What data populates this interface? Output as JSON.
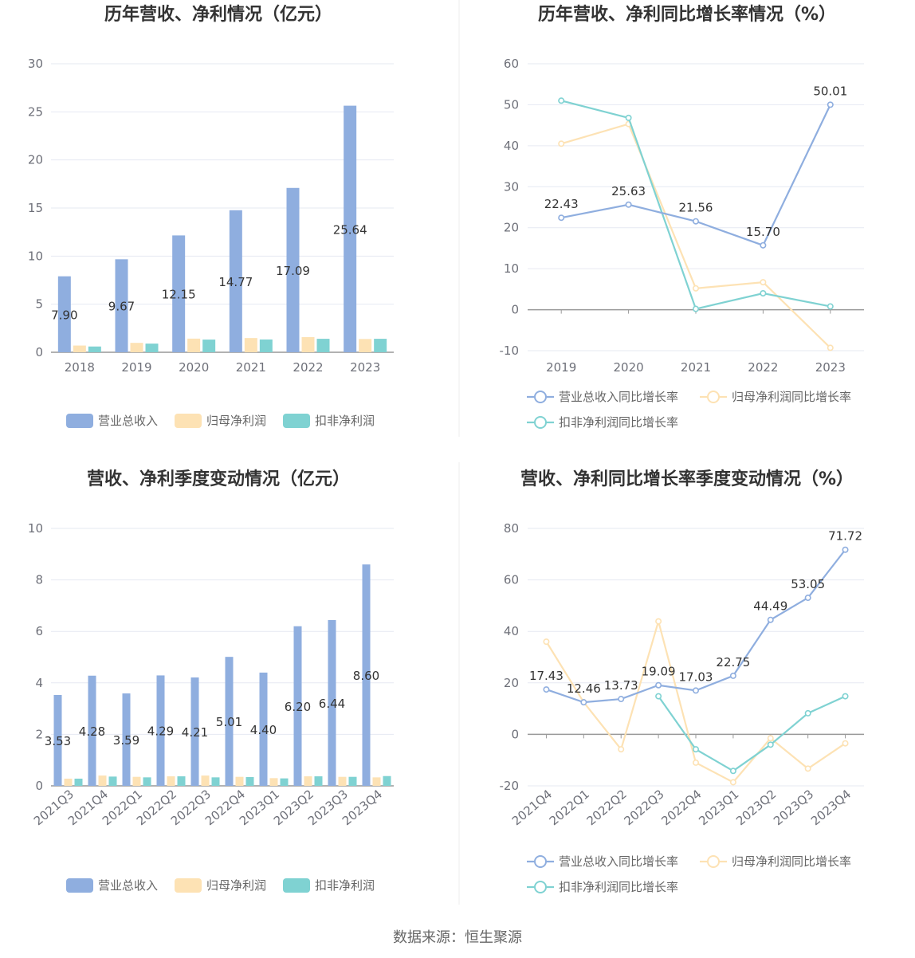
{
  "source": "数据来源：恒生聚源",
  "chart_data": [
    {
      "type": "bar",
      "title": "历年营收、净利情况（亿元）",
      "categories": [
        "2018",
        "2019",
        "2020",
        "2021",
        "2022",
        "2023"
      ],
      "ylim": [
        0,
        30
      ],
      "yticks": [
        0,
        5,
        10,
        15,
        20,
        25,
        30
      ],
      "series": [
        {
          "name": "营业总收入",
          "color": "#8faedf",
          "values": [
            7.9,
            9.67,
            12.15,
            14.77,
            17.09,
            25.64
          ],
          "labels": [
            "7.90",
            "9.67",
            "12.15",
            "14.77",
            "17.09",
            "25.64"
          ]
        },
        {
          "name": "归母净利润",
          "color": "#fde2b4",
          "values": [
            0.7,
            0.98,
            1.42,
            1.48,
            1.58,
            1.38
          ]
        },
        {
          "name": "扣非净利润",
          "color": "#7fd2d2",
          "values": [
            0.6,
            0.9,
            1.32,
            1.33,
            1.4,
            1.4
          ]
        }
      ]
    },
    {
      "type": "line",
      "title": "历年营收、净利同比增长率情况（%）",
      "categories": [
        "2019",
        "2020",
        "2021",
        "2022",
        "2023"
      ],
      "ylim": [
        -10,
        60
      ],
      "yticks": [
        -10,
        0,
        10,
        20,
        30,
        40,
        50,
        60
      ],
      "series": [
        {
          "name": "营业总收入同比增长率",
          "color": "#8faedf",
          "values": [
            22.43,
            25.63,
            21.56,
            15.7,
            50.01
          ],
          "labels": [
            "22.43",
            "25.63",
            "21.56",
            "15.70",
            "50.01"
          ]
        },
        {
          "name": "归母净利润同比增长率",
          "color": "#fde2b4",
          "values": [
            40.5,
            45.3,
            5.2,
            6.7,
            -9.3
          ]
        },
        {
          "name": "扣非净利润同比增长率",
          "color": "#7fd2d2",
          "values": [
            51.0,
            46.8,
            0.2,
            4.0,
            0.8
          ]
        }
      ]
    },
    {
      "type": "bar",
      "title": "营收、净利季度变动情况（亿元）",
      "categories": [
        "2021Q3",
        "2021Q4",
        "2022Q1",
        "2022Q2",
        "2022Q3",
        "2022Q4",
        "2023Q1",
        "2023Q2",
        "2023Q3",
        "2023Q4"
      ],
      "ylim": [
        0,
        10
      ],
      "yticks": [
        0,
        2,
        4,
        6,
        8,
        10
      ],
      "series": [
        {
          "name": "营业总收入",
          "color": "#8faedf",
          "values": [
            3.53,
            4.28,
            3.59,
            4.29,
            4.21,
            5.01,
            4.4,
            6.2,
            6.44,
            8.6
          ],
          "labels": [
            "3.53",
            "4.28",
            "3.59",
            "4.29",
            "4.21",
            "5.01",
            "4.40",
            "6.20",
            "6.44",
            "8.60"
          ]
        },
        {
          "name": "归母净利润",
          "color": "#fde2b4",
          "values": [
            0.28,
            0.4,
            0.35,
            0.37,
            0.4,
            0.35,
            0.3,
            0.37,
            0.35,
            0.33
          ]
        },
        {
          "name": "扣非净利润",
          "color": "#7fd2d2",
          "values": [
            0.28,
            0.36,
            0.33,
            0.37,
            0.33,
            0.34,
            0.29,
            0.37,
            0.35,
            0.38
          ]
        }
      ]
    },
    {
      "type": "line",
      "title": "营收、净利同比增长率季度变动情况（%）",
      "categories": [
        "2021Q4",
        "2022Q1",
        "2022Q2",
        "2022Q3",
        "2022Q4",
        "2023Q1",
        "2023Q2",
        "2023Q3",
        "2023Q4"
      ],
      "ylim": [
        -20,
        80
      ],
      "yticks": [
        -20,
        0,
        20,
        40,
        60,
        80
      ],
      "series": [
        {
          "name": "营业总收入同比增长率",
          "color": "#8faedf",
          "values": [
            17.43,
            12.46,
            13.73,
            19.09,
            17.03,
            22.75,
            44.49,
            53.05,
            71.72
          ],
          "labels": [
            "17.43",
            "12.46",
            "13.73",
            "19.09",
            "17.03",
            "22.75",
            "44.49",
            "53.05",
            "71.72"
          ]
        },
        {
          "name": "归母净利润同比增长率",
          "color": "#fde2b4",
          "values": [
            36.0,
            12.5,
            -5.8,
            43.9,
            -11.0,
            -18.6,
            -1.5,
            -13.3,
            -3.5
          ]
        },
        {
          "name": "扣非净利润同比增长率",
          "color": "#7fd2d2",
          "values": [
            null,
            null,
            null,
            14.8,
            -5.8,
            -14.2,
            -4.0,
            8.2,
            14.8
          ]
        }
      ]
    }
  ]
}
